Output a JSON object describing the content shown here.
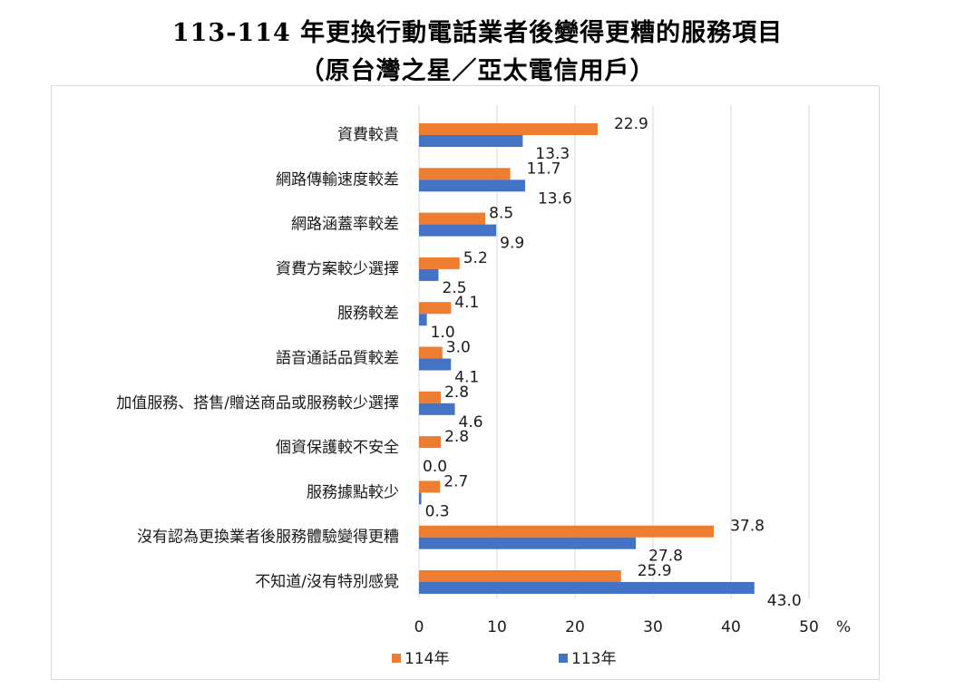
{
  "title": {
    "line1": "113-114 年更換行動電話業者後變得更糟的服務項目",
    "line2": "（原台灣之星／亞太電信用戶）"
  },
  "chart_data": {
    "type": "bar",
    "orientation": "horizontal",
    "title": "113-114 年更換行動電話業者後變得更糟的服務項目（原台灣之星／亞太電信用戶）",
    "xlabel": "%",
    "ylabel": "",
    "xlim": [
      0,
      50
    ],
    "xticks": [
      0,
      10,
      20,
      30,
      40,
      50
    ],
    "grid": true,
    "legend_position": "bottom",
    "categories": [
      "資費較貴",
      "網路傳輸速度較差",
      "網路涵蓋率較差",
      "資費方案較少選擇",
      "服務較差",
      "語音通話品質較差",
      "加值服務、搭售/贈送商品或服務較少選擇",
      "個資保護較不安全",
      "服務據點較少",
      "沒有認為更換業者後服務體驗變得更糟",
      "不知道/沒有特別感覺"
    ],
    "series": [
      {
        "name": "114年",
        "color": "#ED7D31",
        "values": [
          22.9,
          11.7,
          8.5,
          5.2,
          4.1,
          3.0,
          2.8,
          2.8,
          2.7,
          37.8,
          25.9
        ],
        "labels": [
          "22.9",
          "11.7",
          "8.5",
          "5.2",
          "4.1",
          "3.0",
          "2.8",
          "2.8",
          "2.7",
          "37.8",
          "25.9"
        ]
      },
      {
        "name": "113年",
        "color": "#4472C4",
        "values": [
          13.3,
          13.6,
          9.9,
          2.5,
          1.0,
          4.1,
          4.6,
          0.0,
          0.3,
          27.8,
          43.0
        ],
        "labels": [
          "13.3",
          "13.6",
          "9.9",
          "2.5",
          "1.0",
          "4.1",
          "4.6",
          "0.0",
          "0.3",
          "27.8",
          "43.0"
        ]
      }
    ],
    "gridline_color": "#d9d9d9"
  }
}
